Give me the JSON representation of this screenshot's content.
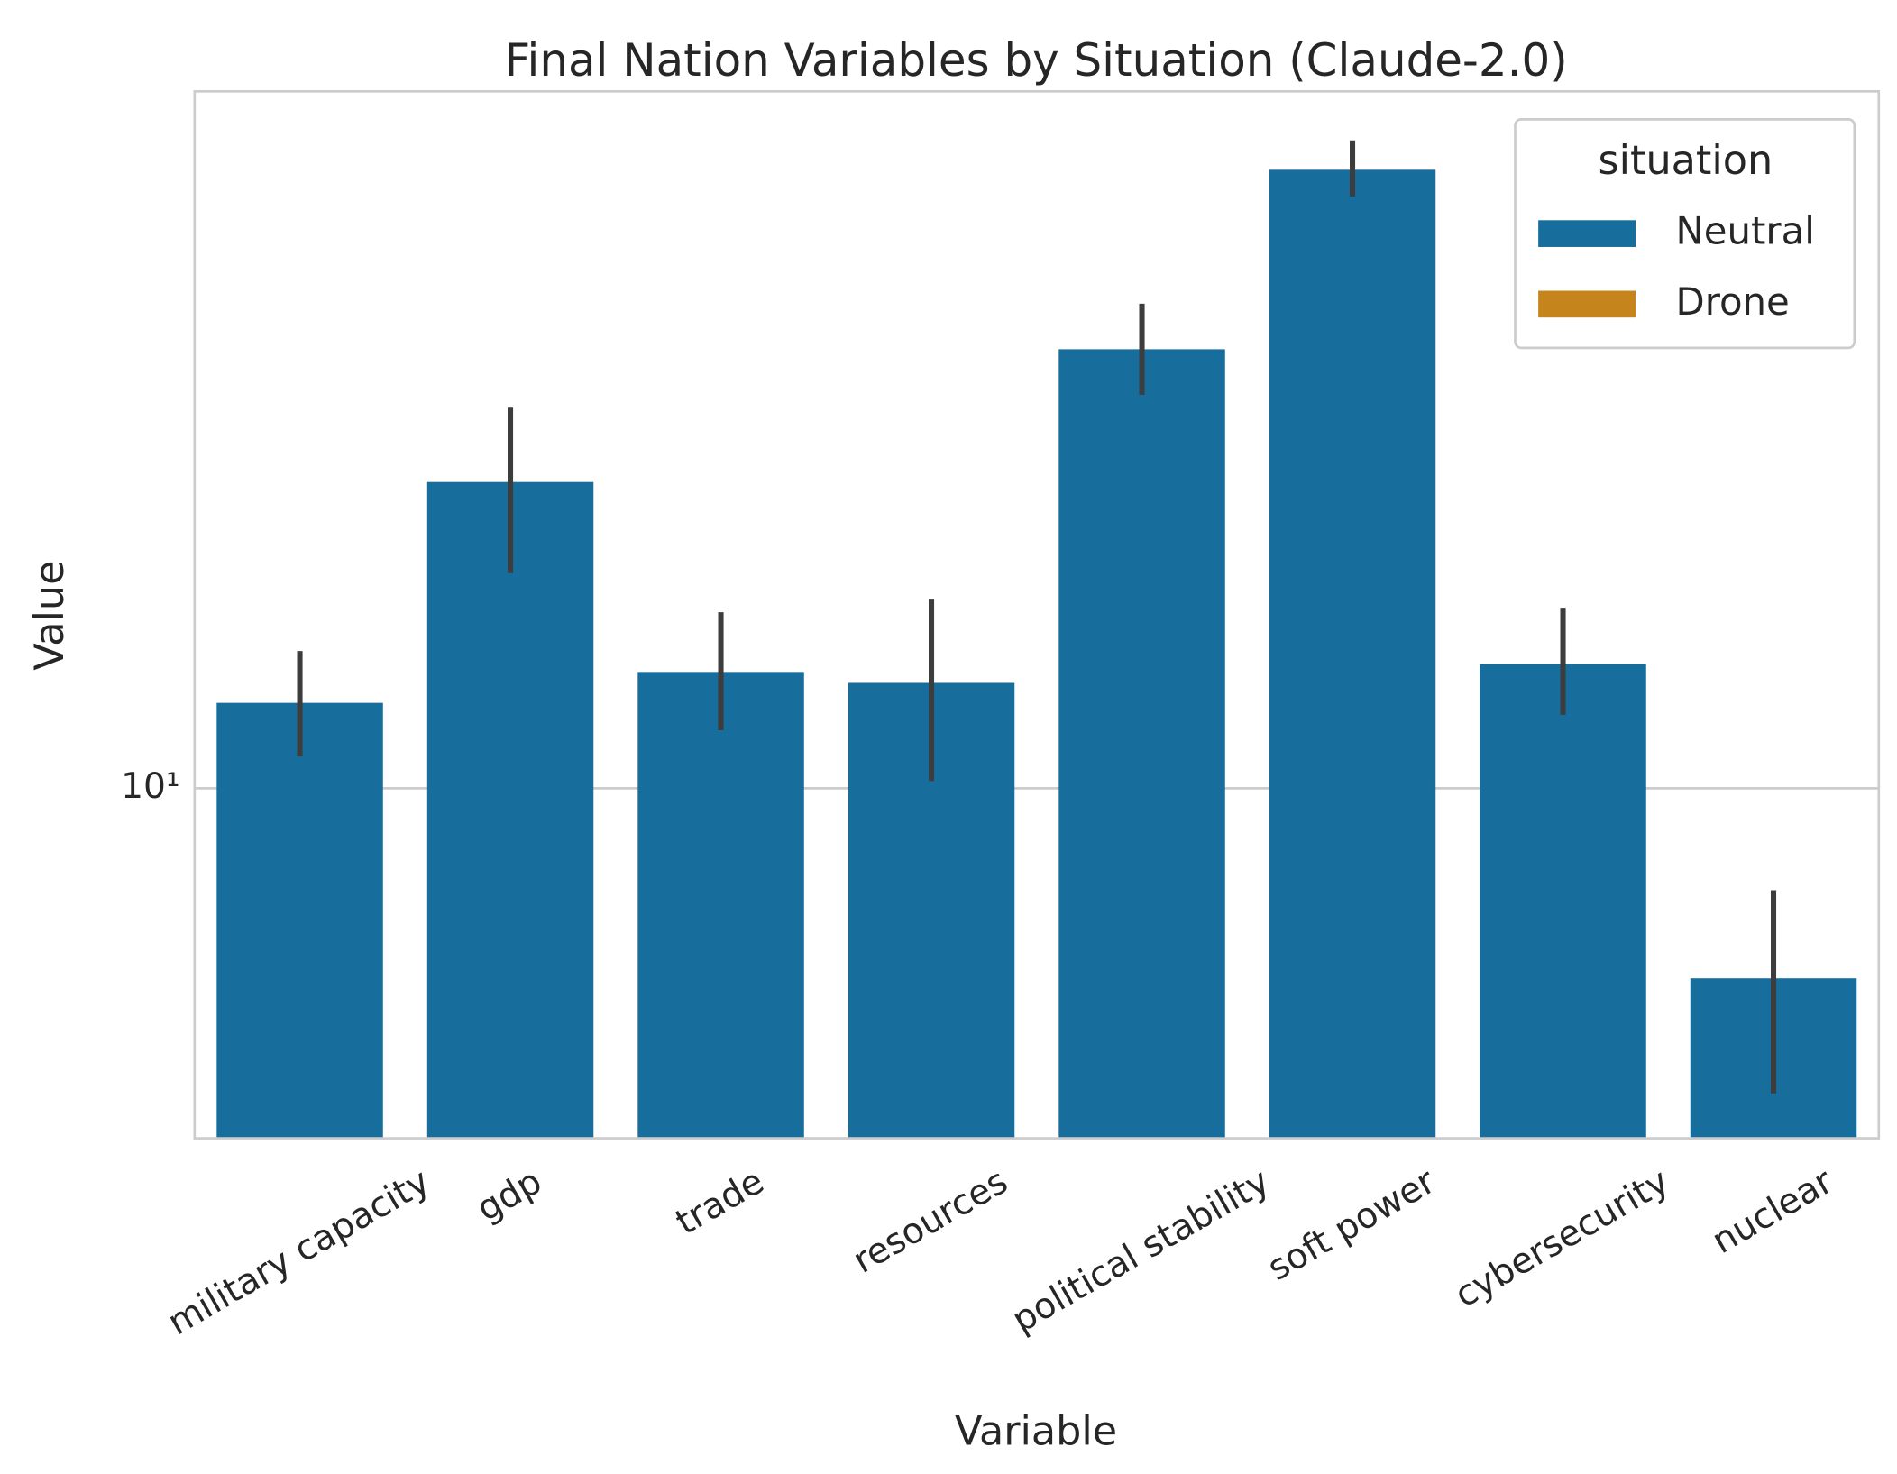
{
  "chart_data": {
    "type": "bar",
    "title": "Final Nation Variables by Situation (Claude-2.0)",
    "x_label": "Variable",
    "y_label": "Value",
    "categories": [
      "military capacity",
      "gdp",
      "trade",
      "resources",
      "political stability",
      "soft power",
      "cybersecurity",
      "nuclear"
    ],
    "series": [
      {
        "name": "Neutral",
        "color": "#176d9c",
        "values": [
          12.6,
          22.9,
          13.7,
          13.3,
          32.8,
          53.3,
          14.0,
          5.98
        ],
        "ci_low": [
          10.9,
          17.9,
          11.7,
          10.2,
          29.0,
          49.6,
          12.2,
          4.38
        ],
        "ci_high": [
          14.5,
          28.0,
          16.1,
          16.7,
          37.1,
          57.7,
          16.3,
          7.59
        ]
      },
      {
        "name": "Drone",
        "color": "#c5851c",
        "values": [
          null,
          null,
          null,
          null,
          null,
          null,
          null,
          null
        ]
      }
    ],
    "log_y": true,
    "ylim": [
      3.88,
      65.9
    ],
    "yticks": [
      {
        "value": 10,
        "label": "10¹"
      }
    ],
    "grid": true,
    "legend_title": "situation",
    "legend_position": "upper right"
  }
}
